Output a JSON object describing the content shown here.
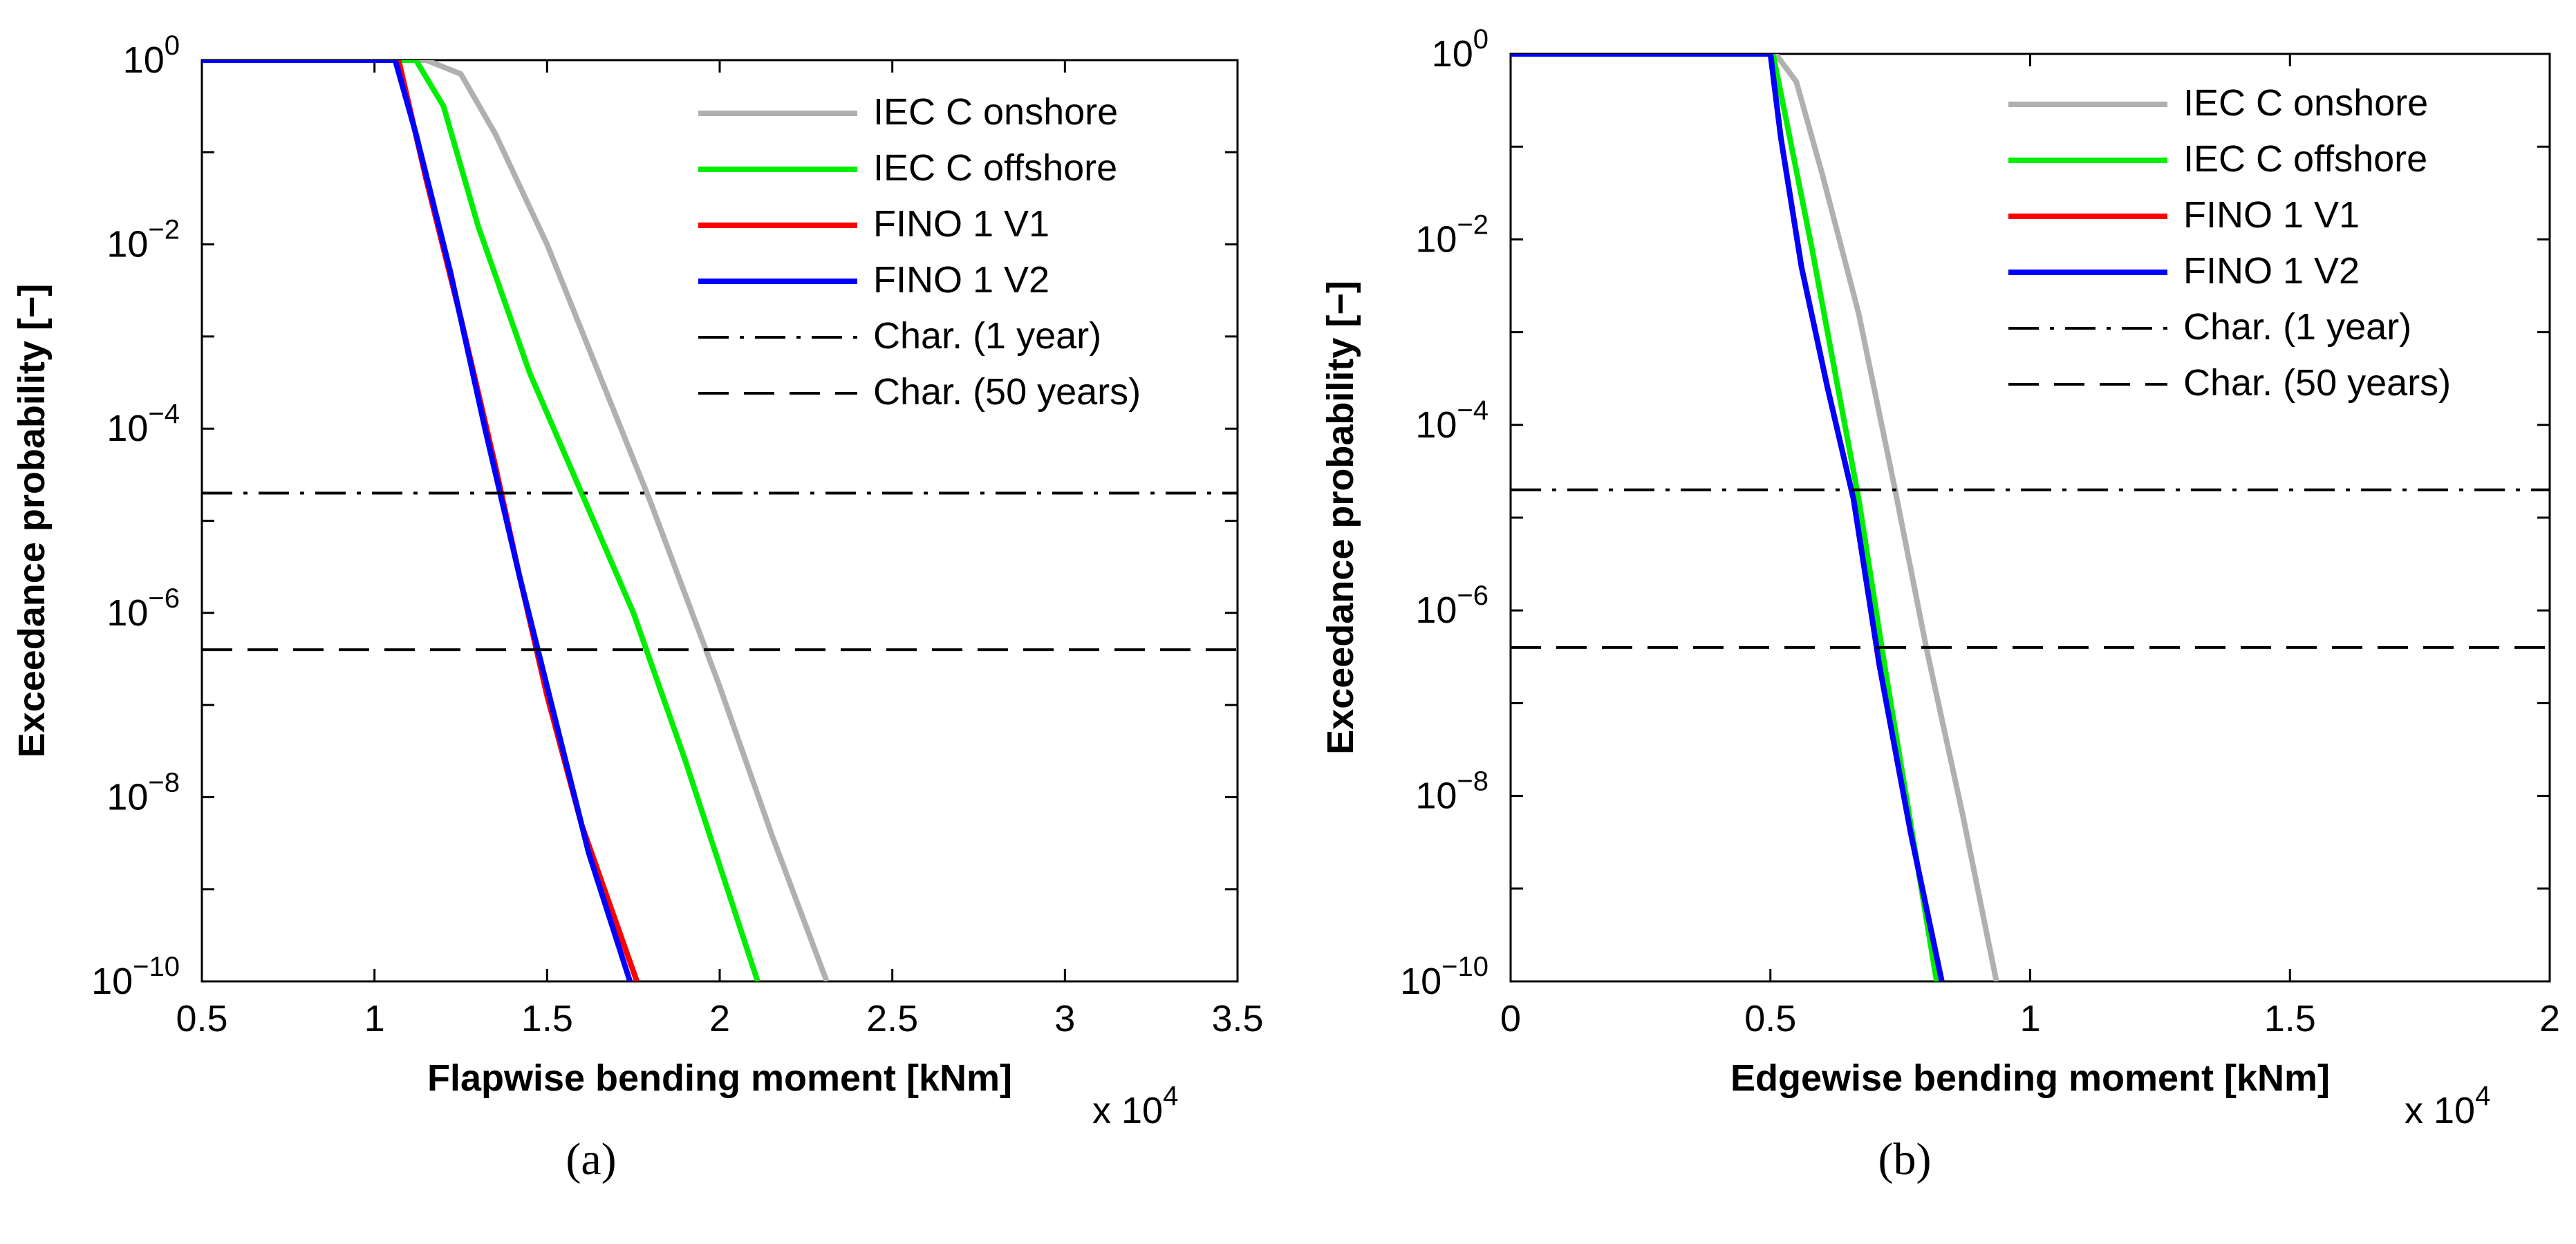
{
  "figure": {
    "captions": [
      "(a)",
      "(b)"
    ]
  },
  "styles": {
    "IEC C onshore": {
      "color": "#b0b0b0",
      "dash": "solid"
    },
    "IEC C offshore": {
      "color": "#00ee00",
      "dash": "solid"
    },
    "FINO 1 V1": {
      "color": "#ff0000",
      "dash": "solid"
    },
    "FINO 1 V2": {
      "color": "#0000ff",
      "dash": "solid"
    },
    "Char. (1 year)": {
      "color": "#000000",
      "dash": "dashdot"
    },
    "Char. (50 years)": {
      "color": "#000000",
      "dash": "dash"
    }
  },
  "chart_data": [
    {
      "type": "line",
      "panel": "(a)",
      "xlabel": "Flapwise bending moment [kNm]",
      "ylabel": "Exceedance probability [−]",
      "x_multiplier": "x 10",
      "x_multiplier_exp": "4",
      "xlim": [
        0.5,
        3.5
      ],
      "xticks": [
        0.5,
        1,
        1.5,
        2,
        2.5,
        3,
        3.5
      ],
      "xtick_labels": [
        "0.5",
        "1",
        "1.5",
        "2",
        "2.5",
        "3",
        "3.5"
      ],
      "yscale": "log",
      "ylim_exp": [
        -10,
        0
      ],
      "yticks_exp": [
        0,
        -2,
        -4,
        -6,
        -8,
        -10
      ],
      "ytick_base": "10",
      "ytick_exp_labels": [
        "0",
        "−2",
        "−4",
        "−6",
        "−8",
        "−10"
      ],
      "legend": [
        "IEC C onshore",
        "IEC C offshore",
        "FINO 1 V1",
        "FINO 1 V2",
        "Char. (1 year)",
        "Char. (50 years)"
      ],
      "legend_position": "top-right",
      "series": [
        {
          "name": "IEC C onshore",
          "x": [
            0.5,
            1.15,
            1.25,
            1.35,
            1.5,
            1.65,
            1.8,
            2.0,
            2.15,
            2.31
          ],
          "log10_y": [
            0,
            0,
            -0.15,
            -0.8,
            -2.0,
            -3.4,
            -4.8,
            -6.8,
            -8.4,
            -10
          ]
        },
        {
          "name": "IEC C offshore",
          "x": [
            0.5,
            1.12,
            1.2,
            1.3,
            1.45,
            1.6,
            1.75,
            1.9,
            2.11
          ],
          "log10_y": [
            0,
            0,
            -0.5,
            -1.8,
            -3.4,
            -4.7,
            -6.0,
            -7.6,
            -10
          ]
        },
        {
          "name": "FINO 1 V1",
          "x": [
            0.5,
            1.07,
            1.15,
            1.25,
            1.35,
            1.42,
            1.5,
            1.6,
            1.76
          ],
          "log10_y": [
            0,
            0,
            -1.3,
            -2.8,
            -4.4,
            -5.6,
            -6.9,
            -8.3,
            -10
          ]
        },
        {
          "name": "FINO 1 V2",
          "x": [
            0.5,
            1.06,
            1.12,
            1.22,
            1.32,
            1.42,
            1.52,
            1.62,
            1.74
          ],
          "log10_y": [
            0,
            0,
            -0.8,
            -2.3,
            -4.0,
            -5.6,
            -7.1,
            -8.6,
            -10
          ]
        },
        {
          "name": "Char. (1 year)",
          "x": [
            0.5,
            3.5
          ],
          "log10_y": [
            -4.7,
            -4.7
          ]
        },
        {
          "name": "Char. (50 years)",
          "x": [
            0.5,
            3.5
          ],
          "log10_y": [
            -6.4,
            -6.4
          ]
        }
      ]
    },
    {
      "type": "line",
      "panel": "(b)",
      "xlabel": "Edgewise bending moment [kNm]",
      "ylabel": "Exceedance probability [−]",
      "x_multiplier": "x 10",
      "x_multiplier_exp": "4",
      "xlim": [
        0,
        2
      ],
      "xticks": [
        0,
        0.5,
        1,
        1.5,
        2
      ],
      "xtick_labels": [
        "0",
        "0.5",
        "1",
        "1.5",
        "2"
      ],
      "yscale": "log",
      "ylim_exp": [
        -10,
        0
      ],
      "yticks_exp": [
        0,
        -2,
        -4,
        -6,
        -8,
        -10
      ],
      "ytick_base": "10",
      "ytick_exp_labels": [
        "0",
        "−2",
        "−4",
        "−6",
        "−8",
        "−10"
      ],
      "legend": [
        "IEC C onshore",
        "IEC C offshore",
        "FINO 1 V1",
        "FINO 1 V2",
        "Char. (1 year)",
        "Char. (50 years)"
      ],
      "legend_position": "top-right",
      "series": [
        {
          "name": "IEC C onshore",
          "x": [
            0,
            0.51,
            0.55,
            0.6,
            0.67,
            0.74,
            0.8,
            0.87,
            0.935
          ],
          "log10_y": [
            0,
            0,
            -0.3,
            -1.3,
            -2.8,
            -4.7,
            -6.4,
            -8.2,
            -10
          ]
        },
        {
          "name": "IEC C offshore",
          "x": [
            0,
            0.505,
            0.53,
            0.58,
            0.63,
            0.67,
            0.72,
            0.77,
            0.82
          ],
          "log10_y": [
            0,
            0,
            -0.7,
            -2.1,
            -3.6,
            -4.8,
            -6.6,
            -8.3,
            -10
          ]
        },
        {
          "name": "FINO 1 V1",
          "x": [
            0,
            0.5,
            0.52,
            0.56,
            0.61,
            0.66,
            0.71,
            0.77,
            0.83
          ],
          "log10_y": [
            0,
            0,
            -0.9,
            -2.3,
            -3.6,
            -4.8,
            -6.6,
            -8.4,
            -10
          ]
        },
        {
          "name": "FINO 1 V2",
          "x": [
            0,
            0.5,
            0.52,
            0.56,
            0.61,
            0.66,
            0.71,
            0.77,
            0.83
          ],
          "log10_y": [
            0,
            0,
            -0.9,
            -2.3,
            -3.6,
            -4.8,
            -6.6,
            -8.4,
            -10
          ]
        },
        {
          "name": "Char. (1 year)",
          "x": [
            0,
            2
          ],
          "log10_y": [
            -4.7,
            -4.7
          ]
        },
        {
          "name": "Char. (50 years)",
          "x": [
            0,
            2
          ],
          "log10_y": [
            -6.4,
            -6.4
          ]
        }
      ]
    }
  ]
}
